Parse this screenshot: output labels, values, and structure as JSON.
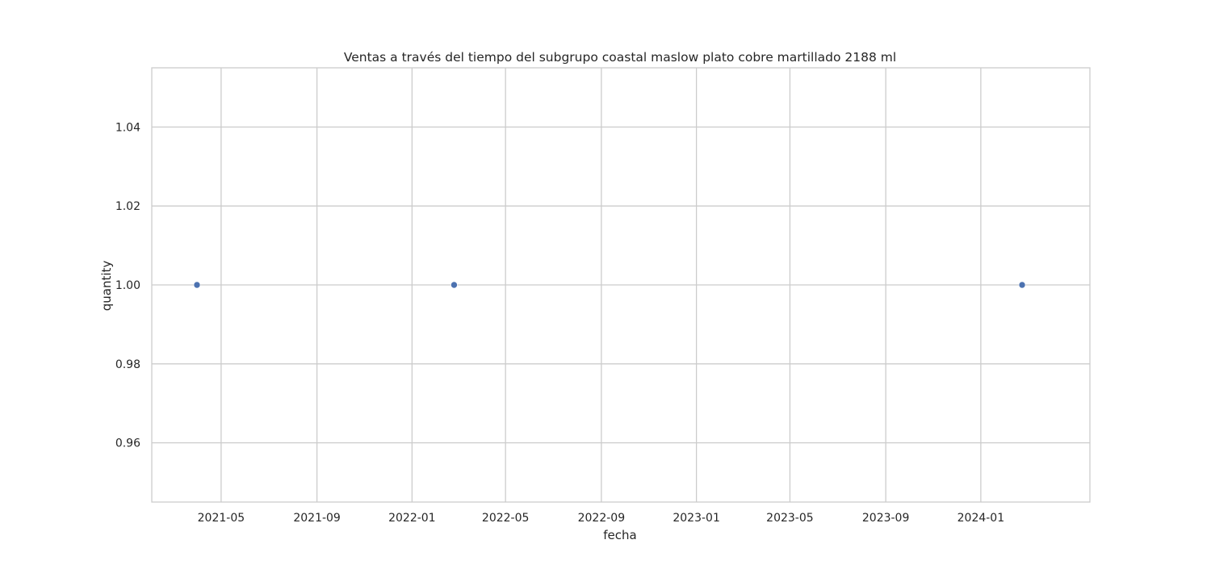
{
  "chart_data": {
    "type": "scatter",
    "title": "Ventas a través del tiempo del subgrupo coastal maslow plato cobre martillado 2188 ml",
    "xlabel": "fecha",
    "ylabel": "quantity",
    "x_axis_type": "date",
    "xlim": [
      "2021-02-01",
      "2024-05-20"
    ],
    "ylim": [
      0.945,
      1.055
    ],
    "grid": true,
    "x_ticks": [
      "2021-05",
      "2021-09",
      "2022-01",
      "2022-05",
      "2022-09",
      "2023-01",
      "2023-05",
      "2023-09",
      "2024-01"
    ],
    "x_tick_dates": [
      "2021-05-01",
      "2021-09-01",
      "2022-01-01",
      "2022-05-01",
      "2022-09-01",
      "2023-01-01",
      "2023-05-01",
      "2023-09-01",
      "2024-01-01"
    ],
    "y_ticks": [
      "0.96",
      "0.98",
      "1.00",
      "1.02",
      "1.04"
    ],
    "y_tick_values": [
      0.96,
      0.98,
      1.0,
      1.02,
      1.04
    ],
    "points": [
      {
        "x": "2021-03-31",
        "y": 1.0
      },
      {
        "x": "2022-02-24",
        "y": 1.0
      },
      {
        "x": "2024-02-23",
        "y": 1.0
      }
    ],
    "marker_color": "#4c72b0",
    "grid_color": "#cccccc"
  }
}
